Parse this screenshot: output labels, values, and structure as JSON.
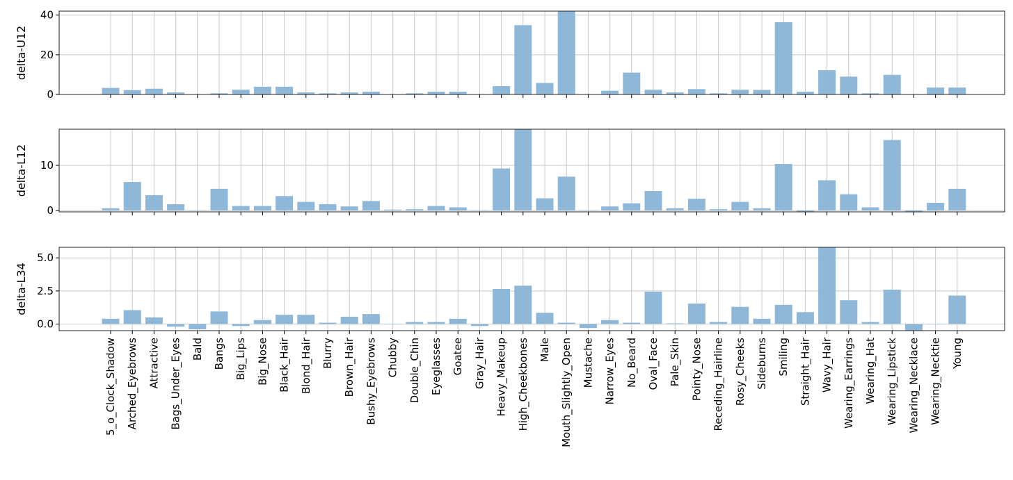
{
  "chart_data": {
    "type": "bar",
    "colors": {
      "bar": "#8fb7d8",
      "grid": "#c8c8c8",
      "axes": "#000000"
    },
    "grid": true,
    "categories": [
      "5_o_Clock_Shadow",
      "Arched_Eyebrows",
      "Attractive",
      "Bags_Under_Eyes",
      "Bald",
      "Bangs",
      "Big_Lips",
      "Big_Nose",
      "Black_Hair",
      "Blond_Hair",
      "Blurry",
      "Brown_Hair",
      "Bushy_Eyebrows",
      "Chubby",
      "Double_Chin",
      "Eyeglasses",
      "Goatee",
      "Gray_Hair",
      "Heavy_Makeup",
      "High_Cheekbones",
      "Male",
      "Mouth_Slightly_Open",
      "Mustache",
      "Narrow_Eyes",
      "No_Beard",
      "Oval_Face",
      "Pale_Skin",
      "Pointy_Nose",
      "Receding_Hairline",
      "Rosy_Cheeks",
      "Sideburns",
      "Smiling",
      "Straight_Hair",
      "Wavy_Hair",
      "Wearing_Earrings",
      "Wearing_Hat",
      "Wearing_Lipstick",
      "Wearing_Necklace",
      "Wearing_Necktie",
      "Young"
    ],
    "panels": [
      {
        "ylabel": "delta-U12",
        "ylim": [
          0,
          42
        ],
        "yticks": [
          0,
          20,
          40
        ],
        "tick_labels": [
          "0",
          "20",
          "40"
        ],
        "values": [
          3.3,
          2.2,
          2.9,
          1.0,
          0.1,
          0.6,
          2.4,
          3.9,
          3.9,
          1.0,
          0.6,
          1.0,
          1.4,
          0.1,
          0.6,
          1.4,
          1.4,
          0.1,
          4.2,
          34.9,
          5.8,
          42.0,
          0.1,
          1.9,
          11.0,
          2.4,
          1.0,
          2.7,
          0.6,
          2.4,
          2.3,
          36.4,
          1.4,
          12.2,
          9.0,
          0.6,
          9.9,
          0.1,
          3.5,
          3.5
        ]
      },
      {
        "ylabel": "delta-L12",
        "ylim": [
          -0.3,
          18
        ],
        "yticks": [
          0,
          10
        ],
        "tick_labels": [
          "0",
          "10"
        ],
        "values": [
          0.5,
          6.3,
          3.4,
          1.4,
          0.0,
          4.8,
          1.0,
          1.0,
          3.2,
          1.9,
          1.4,
          0.9,
          2.1,
          0.2,
          0.3,
          1.0,
          0.7,
          0.0,
          9.3,
          18.0,
          2.7,
          7.5,
          0.0,
          0.9,
          1.6,
          4.3,
          0.5,
          2.6,
          0.3,
          1.9,
          0.5,
          10.3,
          -0.7,
          6.7,
          3.6,
          0.7,
          15.6,
          -0.4,
          1.7,
          4.8
        ]
      },
      {
        "ylabel": "delta-L34",
        "ylim": [
          -0.5,
          5.8
        ],
        "yticks": [
          0.0,
          2.5,
          5.0
        ],
        "tick_labels": [
          "0.0",
          "2.5",
          "5.0"
        ],
        "values": [
          0.4,
          1.05,
          0.5,
          -0.2,
          -0.4,
          0.95,
          -0.15,
          0.3,
          0.7,
          0.7,
          0.1,
          0.55,
          0.75,
          0.0,
          0.15,
          0.15,
          0.4,
          -0.15,
          2.65,
          2.9,
          0.85,
          0.1,
          -0.3,
          0.3,
          0.1,
          2.45,
          0.05,
          1.55,
          0.15,
          1.3,
          0.4,
          1.45,
          0.9,
          5.8,
          1.8,
          0.15,
          2.6,
          -0.5,
          0.0,
          2.15
        ]
      }
    ]
  }
}
